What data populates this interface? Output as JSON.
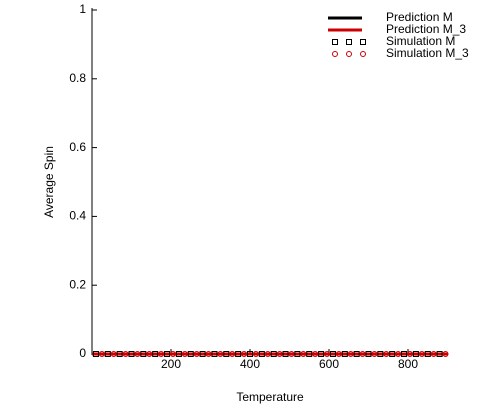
{
  "chart_data": {
    "type": "line",
    "xlabel": "Temperature",
    "ylabel": "Average Spin",
    "xlim": [
      0,
      900
    ],
    "xticks": [
      200,
      400,
      600,
      800
    ],
    "ylim": [
      0,
      1
    ],
    "yticks": [
      0,
      0.2,
      0.4,
      0.6,
      0.8,
      1
    ],
    "legend": "top-right",
    "series": [
      {
        "name": "Prediction M",
        "color": "#000000",
        "style": "line",
        "x": [
          0,
          100,
          200,
          300,
          400,
          500,
          600,
          700,
          800,
          900
        ],
        "values": [
          0,
          0,
          0,
          0,
          0,
          0,
          0,
          0,
          0,
          0
        ]
      },
      {
        "name": "Prediction M_3",
        "color": "#cc0000",
        "style": "line",
        "x": [
          0,
          100,
          200,
          300,
          400,
          500,
          600,
          700,
          800,
          900
        ],
        "values": [
          0,
          0,
          0,
          0,
          0,
          0,
          0,
          0,
          0,
          0
        ]
      },
      {
        "name": "Simulation M",
        "color": "#000000",
        "style": "square",
        "x": [
          10,
          40,
          70,
          100,
          130,
          160,
          190,
          220,
          250,
          280,
          310,
          340,
          370,
          400,
          430,
          460,
          490,
          520,
          550,
          580,
          610,
          640,
          670,
          700,
          730,
          760,
          790,
          820,
          850,
          880
        ],
        "values": [
          0,
          0,
          0,
          0,
          0,
          0,
          0,
          0,
          0,
          0,
          0,
          0,
          0,
          0,
          0,
          0,
          0,
          0,
          0,
          0,
          0,
          0,
          0,
          0,
          0,
          0,
          0,
          0,
          0,
          0
        ]
      },
      {
        "name": "Simulation M_3",
        "color": "#cc0000",
        "style": "circle",
        "x": [
          25,
          55,
          85,
          115,
          145,
          175,
          205,
          235,
          265,
          295,
          325,
          355,
          385,
          415,
          445,
          475,
          505,
          535,
          565,
          595,
          625,
          655,
          685,
          715,
          745,
          775,
          805,
          835,
          865,
          895
        ],
        "values": [
          0,
          0,
          0,
          0,
          0,
          0,
          0,
          0,
          0,
          0,
          0,
          0,
          0,
          0,
          0,
          0,
          0,
          0,
          0,
          0,
          0,
          0,
          0,
          0,
          0,
          0,
          0,
          0,
          0,
          0
        ]
      }
    ]
  }
}
